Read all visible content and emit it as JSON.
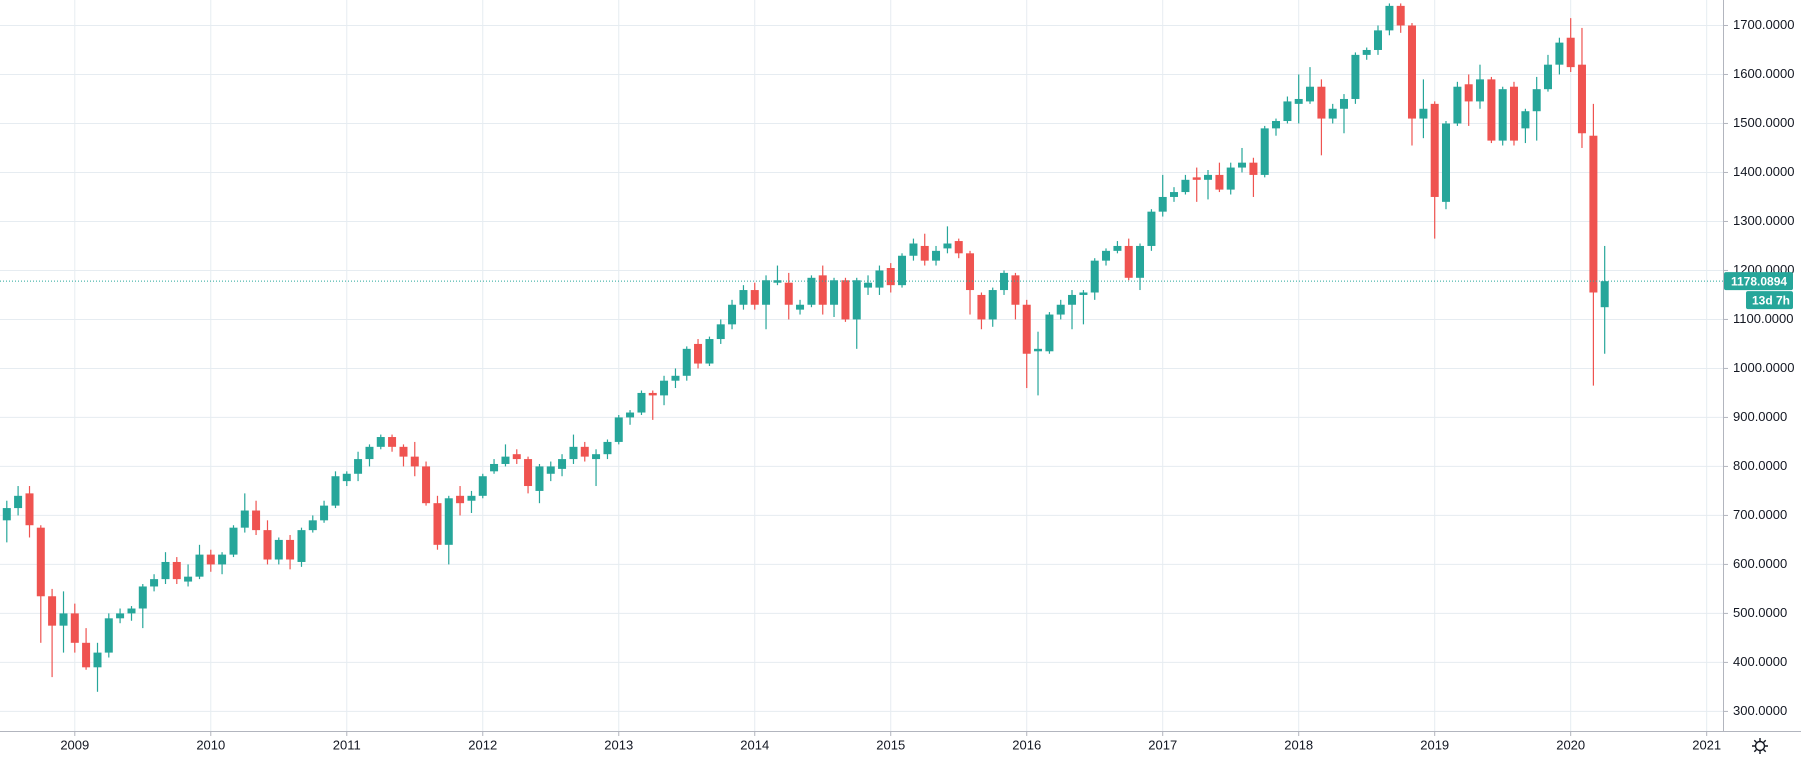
{
  "chart_data": {
    "type": "candlestick",
    "up_color": "#26a69a",
    "down_color": "#ef5350",
    "grid": true,
    "xlim": [
      2008.45,
      2021.12
    ],
    "xticks": [
      2009,
      2010,
      2011,
      2012,
      2013,
      2014,
      2015,
      2016,
      2017,
      2018,
      2019,
      2020,
      2021
    ],
    "ylim": [
      260,
      1752
    ],
    "yticks": [
      {
        "value": 300,
        "label": "300.0000"
      },
      {
        "value": 400,
        "label": "400.0000"
      },
      {
        "value": 500,
        "label": "500.0000"
      },
      {
        "value": 600,
        "label": "600.0000"
      },
      {
        "value": 700,
        "label": "700.0000"
      },
      {
        "value": 800,
        "label": "800.0000"
      },
      {
        "value": 900,
        "label": "900.0000"
      },
      {
        "value": 1000,
        "label": "1000.0000"
      },
      {
        "value": 1100,
        "label": "1100.0000"
      },
      {
        "value": 1200,
        "label": "1200.0000"
      },
      {
        "value": 1300,
        "label": "1300.0000"
      },
      {
        "value": 1400,
        "label": "1400.0000"
      },
      {
        "value": 1500,
        "label": "1500.0000"
      },
      {
        "value": 1600,
        "label": "1600.0000"
      },
      {
        "value": 1700,
        "label": "1700.0000"
      }
    ],
    "price_line": {
      "value": 1178.0894,
      "label": "1178.0894"
    },
    "countdown": "13d 7h",
    "x": [
      2008.5,
      2008.583,
      2008.667,
      2008.75,
      2008.833,
      2008.917,
      2009,
      2009.083,
      2009.167,
      2009.25,
      2009.333,
      2009.417,
      2009.5,
      2009.583,
      2009.667,
      2009.75,
      2009.833,
      2009.917,
      2010,
      2010.083,
      2010.167,
      2010.25,
      2010.333,
      2010.417,
      2010.5,
      2010.583,
      2010.667,
      2010.75,
      2010.833,
      2010.917,
      2011,
      2011.083,
      2011.167,
      2011.25,
      2011.333,
      2011.417,
      2011.5,
      2011.583,
      2011.667,
      2011.75,
      2011.833,
      2011.917,
      2012,
      2012.083,
      2012.167,
      2012.25,
      2012.333,
      2012.417,
      2012.5,
      2012.583,
      2012.667,
      2012.75,
      2012.833,
      2012.917,
      2013,
      2013.083,
      2013.167,
      2013.25,
      2013.333,
      2013.417,
      2013.5,
      2013.583,
      2013.667,
      2013.75,
      2013.833,
      2013.917,
      2014,
      2014.083,
      2014.167,
      2014.25,
      2014.333,
      2014.417,
      2014.5,
      2014.583,
      2014.667,
      2014.75,
      2014.833,
      2014.917,
      2015,
      2015.083,
      2015.167,
      2015.25,
      2015.333,
      2015.417,
      2015.5,
      2015.583,
      2015.667,
      2015.75,
      2015.833,
      2015.917,
      2016,
      2016.083,
      2016.167,
      2016.25,
      2016.333,
      2016.417,
      2016.5,
      2016.583,
      2016.667,
      2016.75,
      2016.833,
      2016.917,
      2017,
      2017.083,
      2017.167,
      2017.25,
      2017.333,
      2017.417,
      2017.5,
      2017.583,
      2017.667,
      2017.75,
      2017.833,
      2017.917,
      2018,
      2018.083,
      2018.167,
      2018.25,
      2018.333,
      2018.417,
      2018.5,
      2018.583,
      2018.667,
      2018.75,
      2018.833,
      2018.917,
      2019,
      2019.083,
      2019.167,
      2019.25,
      2019.333,
      2019.417,
      2019.5,
      2019.583,
      2019.667,
      2019.75,
      2019.833,
      2019.917,
      2020,
      2020.083,
      2020.167,
      2020.25
    ],
    "open": [
      690,
      715,
      745,
      675,
      535,
      475,
      500,
      440,
      390,
      420,
      490,
      500,
      510,
      555,
      570,
      605,
      565,
      575,
      620,
      600,
      620,
      675,
      710,
      670,
      610,
      650,
      605,
      670,
      690,
      720,
      770,
      785,
      815,
      840,
      860,
      840,
      820,
      800,
      725,
      640,
      740,
      730,
      740,
      790,
      805,
      825,
      815,
      750,
      785,
      795,
      815,
      840,
      815,
      825,
      850,
      900,
      910,
      950,
      945,
      975,
      985,
      1050,
      1010,
      1060,
      1090,
      1130,
      1160,
      1130,
      1175,
      1175,
      1120,
      1130,
      1190,
      1130,
      1180,
      1100,
      1165,
      1165,
      1205,
      1170,
      1230,
      1250,
      1220,
      1245,
      1260,
      1235,
      1150,
      1100,
      1160,
      1190,
      1130,
      1035,
      1035,
      1110,
      1130,
      1150,
      1155,
      1220,
      1240,
      1250,
      1185,
      1250,
      1320,
      1350,
      1360,
      1390,
      1385,
      1395,
      1365,
      1410,
      1420,
      1395,
      1490,
      1505,
      1540,
      1545,
      1575,
      1510,
      1530,
      1550,
      1640,
      1650,
      1690,
      1740,
      1700,
      1510,
      1540,
      1340,
      1500,
      1580,
      1545,
      1590,
      1465,
      1575,
      1490,
      1525,
      1570,
      1620,
      1675,
      1620,
      1475,
      1125
    ],
    "high": [
      730,
      760,
      760,
      680,
      550,
      545,
      520,
      470,
      440,
      500,
      510,
      515,
      560,
      580,
      625,
      615,
      600,
      640,
      630,
      625,
      680,
      745,
      730,
      690,
      655,
      660,
      675,
      700,
      730,
      790,
      790,
      830,
      845,
      865,
      865,
      845,
      850,
      810,
      740,
      740,
      760,
      750,
      785,
      815,
      845,
      835,
      820,
      805,
      810,
      825,
      865,
      850,
      835,
      855,
      905,
      915,
      955,
      955,
      985,
      1000,
      1045,
      1060,
      1065,
      1100,
      1140,
      1170,
      1175,
      1190,
      1210,
      1195,
      1140,
      1190,
      1210,
      1185,
      1185,
      1185,
      1190,
      1210,
      1215,
      1235,
      1265,
      1275,
      1250,
      1290,
      1265,
      1240,
      1155,
      1165,
      1200,
      1195,
      1140,
      1075,
      1115,
      1140,
      1160,
      1160,
      1225,
      1245,
      1260,
      1265,
      1255,
      1325,
      1395,
      1370,
      1395,
      1410,
      1405,
      1420,
      1420,
      1450,
      1430,
      1495,
      1510,
      1555,
      1600,
      1615,
      1590,
      1540,
      1560,
      1645,
      1655,
      1700,
      1745,
      1745,
      1705,
      1590,
      1545,
      1505,
      1585,
      1600,
      1620,
      1595,
      1575,
      1585,
      1530,
      1595,
      1640,
      1675,
      1715,
      1695,
      1540,
      1250
    ],
    "low": [
      645,
      700,
      655,
      440,
      370,
      420,
      420,
      385,
      340,
      410,
      480,
      485,
      470,
      545,
      560,
      560,
      555,
      570,
      585,
      580,
      615,
      665,
      660,
      600,
      600,
      590,
      595,
      665,
      685,
      715,
      760,
      770,
      800,
      835,
      830,
      800,
      780,
      720,
      630,
      600,
      700,
      705,
      735,
      785,
      800,
      805,
      745,
      725,
      770,
      780,
      805,
      810,
      760,
      815,
      845,
      885,
      905,
      895,
      925,
      960,
      975,
      1000,
      1005,
      1050,
      1080,
      1120,
      1120,
      1080,
      1170,
      1100,
      1110,
      1125,
      1110,
      1105,
      1095,
      1040,
      1150,
      1150,
      1155,
      1165,
      1220,
      1210,
      1210,
      1235,
      1225,
      1110,
      1080,
      1085,
      1150,
      1100,
      960,
      945,
      1030,
      1100,
      1080,
      1090,
      1140,
      1210,
      1235,
      1180,
      1160,
      1240,
      1310,
      1340,
      1355,
      1340,
      1345,
      1360,
      1355,
      1400,
      1350,
      1390,
      1475,
      1500,
      1500,
      1540,
      1435,
      1500,
      1480,
      1540,
      1630,
      1640,
      1680,
      1685,
      1455,
      1470,
      1265,
      1325,
      1495,
      1495,
      1530,
      1460,
      1455,
      1455,
      1460,
      1465,
      1565,
      1600,
      1605,
      1450,
      965,
      1030
    ],
    "close": [
      715,
      740,
      680,
      535,
      475,
      500,
      440,
      390,
      420,
      490,
      500,
      510,
      555,
      570,
      605,
      570,
      575,
      620,
      600,
      620,
      675,
      710,
      670,
      610,
      650,
      610,
      670,
      690,
      720,
      780,
      785,
      815,
      840,
      860,
      840,
      820,
      800,
      725,
      640,
      735,
      725,
      740,
      780,
      805,
      820,
      815,
      760,
      800,
      800,
      815,
      840,
      820,
      825,
      850,
      900,
      910,
      950,
      945,
      975,
      985,
      1040,
      1010,
      1060,
      1090,
      1130,
      1160,
      1130,
      1180,
      1180,
      1130,
      1130,
      1185,
      1130,
      1180,
      1100,
      1180,
      1175,
      1200,
      1170,
      1230,
      1255,
      1220,
      1240,
      1255,
      1235,
      1160,
      1100,
      1160,
      1195,
      1130,
      1030,
      1040,
      1110,
      1130,
      1150,
      1155,
      1220,
      1240,
      1250,
      1185,
      1250,
      1320,
      1350,
      1360,
      1385,
      1385,
      1395,
      1365,
      1410,
      1420,
      1395,
      1490,
      1505,
      1545,
      1550,
      1575,
      1510,
      1530,
      1550,
      1640,
      1650,
      1690,
      1740,
      1700,
      1510,
      1530,
      1350,
      1500,
      1575,
      1545,
      1590,
      1465,
      1570,
      1465,
      1525,
      1570,
      1620,
      1665,
      1615,
      1480,
      1155,
      1178.0894
    ]
  }
}
